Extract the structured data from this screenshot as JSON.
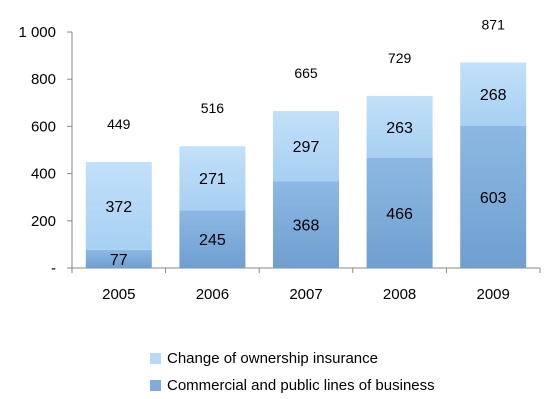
{
  "chart_data": {
    "type": "bar",
    "stacked": true,
    "categories": [
      "2005",
      "2006",
      "2007",
      "2008",
      "2009"
    ],
    "series": [
      {
        "name": "Commercial and public lines of business",
        "values": [
          77,
          245,
          368,
          466,
          603
        ],
        "color": "#7FACDA"
      },
      {
        "name": "Change of ownership insurance",
        "values": [
          372,
          271,
          297,
          263,
          268
        ],
        "color": "#B5D9F6"
      }
    ],
    "totals": [
      449,
      516,
      665,
      729,
      871
    ],
    "ylim": [
      0,
      1000
    ],
    "yticks": [
      0,
      200,
      400,
      600,
      800,
      1000
    ],
    "ytick_labels": [
      "-",
      "200",
      "400",
      "600",
      "800",
      "1 000"
    ],
    "grid": false,
    "legend_position": "bottom"
  }
}
